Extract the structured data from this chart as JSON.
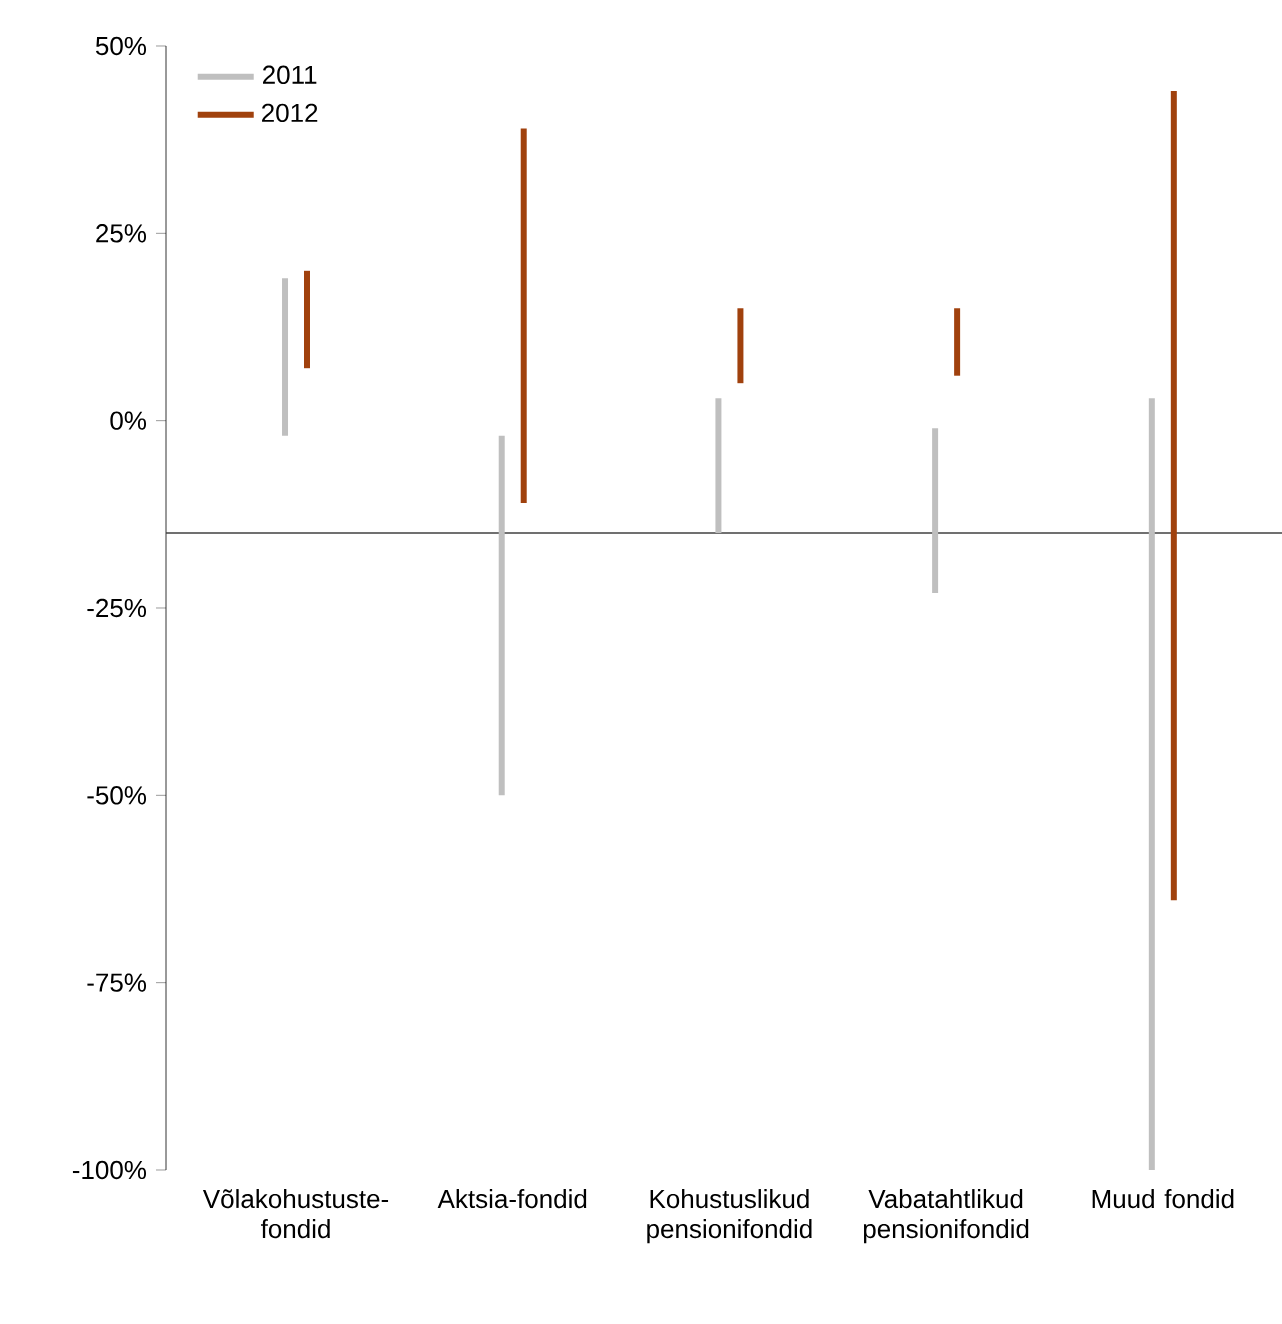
{
  "chart_data": {
    "type": "bar",
    "categories": [
      "Võlakohustuste-fondid",
      "Aktsia-fondid",
      "Kohustuslikud pensionifondid",
      "Vabatahtlikud pensionifondid",
      "Muud fondid"
    ],
    "series": [
      {
        "name": "2011",
        "color": "#bfbfbf",
        "base": [
          -2,
          -50,
          -15,
          -23,
          -100
        ],
        "values": [
          21,
          48,
          18,
          22,
          103
        ]
      },
      {
        "name": "2012",
        "color": "#a0410d",
        "base": [
          7,
          -11,
          5,
          6,
          -64
        ],
        "values": [
          13,
          50,
          10,
          9,
          108
        ]
      }
    ],
    "ylim": [
      -100,
      50
    ],
    "yticks": [
      {
        "value": 50,
        "label": "50%"
      },
      {
        "value": 25,
        "label": "25%"
      },
      {
        "value": 0,
        "label": "0%"
      },
      {
        "value": -25,
        "label": "-25%"
      },
      {
        "value": -50,
        "label": "-50%"
      },
      {
        "value": -75,
        "label": "-75%"
      },
      {
        "value": -100,
        "label": "-100%"
      }
    ],
    "ref_lines": [
      {
        "axis": "y",
        "value": -15,
        "color": "#404040"
      }
    ],
    "legend": "top left",
    "grid": false
  }
}
